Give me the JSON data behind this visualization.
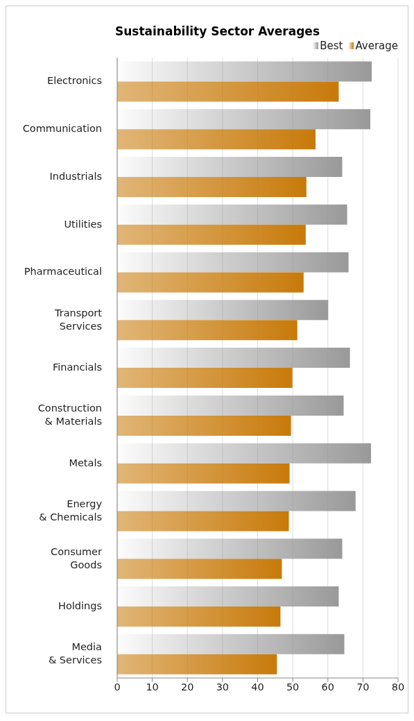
{
  "chart_data": {
    "type": "bar",
    "orientation": "horizontal",
    "title": "Sustainability Sector Averages",
    "categories": [
      "Electronics",
      "Communication",
      "Industrials",
      "Utilities",
      "Pharmaceutical",
      "Transport Services",
      "Financials",
      "Construction & Materials",
      "Metals",
      "Energy & Chemicals",
      "Consumer Goods",
      "Holdings",
      "Media & Services"
    ],
    "series": [
      {
        "name": "Best",
        "color": "#999999",
        "values": [
          72.5,
          72.1,
          64.1,
          65.5,
          65.9,
          60.1,
          66.3,
          64.5,
          72.3,
          67.9,
          64.1,
          63.1,
          64.7
        ]
      },
      {
        "name": "Average",
        "color": "#c87a0a",
        "values": [
          63.1,
          56.5,
          53.9,
          53.7,
          53.1,
          51.3,
          49.9,
          49.5,
          49.1,
          48.9,
          46.9,
          46.5,
          45.5
        ]
      }
    ],
    "xlim": [
      0,
      80
    ],
    "xticks": [
      0,
      10,
      20,
      30,
      40,
      50,
      60,
      70,
      80
    ],
    "grid": "x",
    "legend": "top right"
  }
}
